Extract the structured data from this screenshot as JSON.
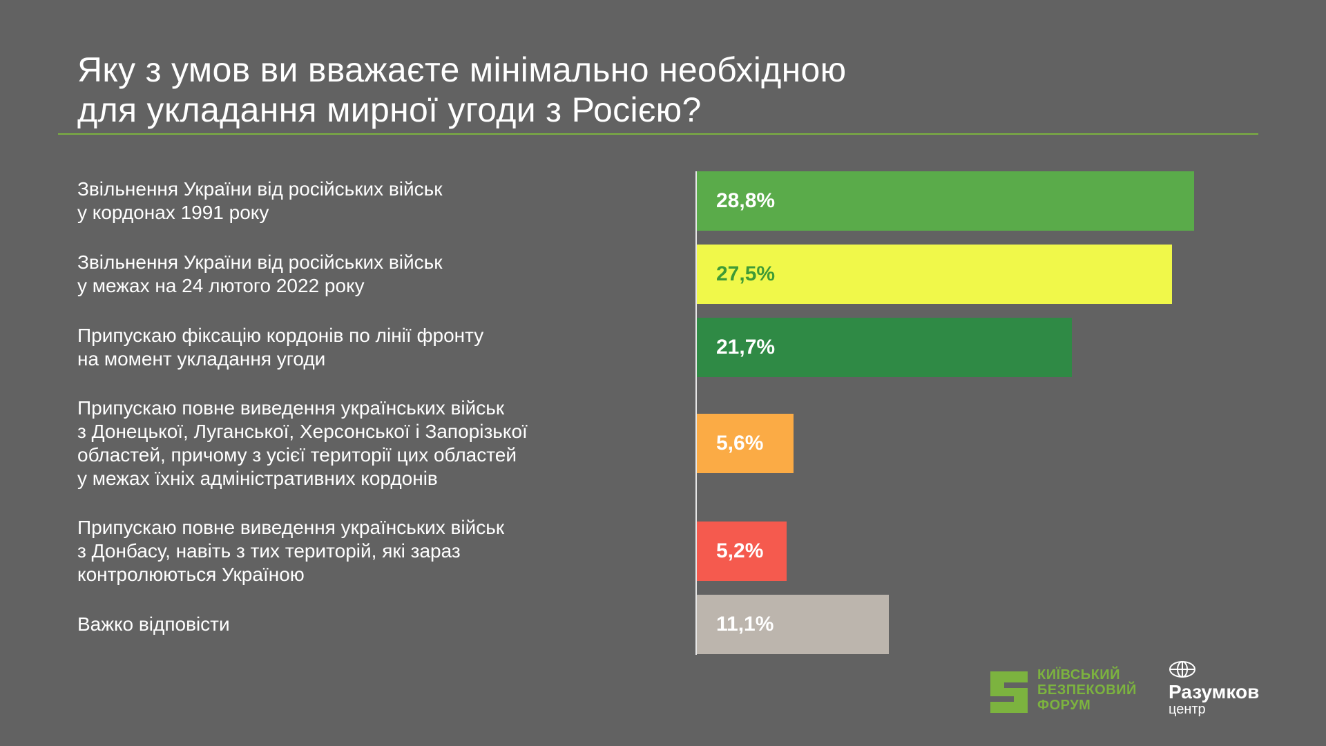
{
  "title": {
    "line1": "Яку з умов ви вважаєте мінімально необхідною",
    "line2": "для укладання мирної угоди з Росією?"
  },
  "chart_data": {
    "type": "bar",
    "orientation": "horizontal",
    "title": "Яку з умов ви вважаєте мінімально необхідною для укладання мирної угоди з Росією?",
    "categories": [
      [
        "Звільнення України від російських військ",
        "у кордонах 1991 року"
      ],
      [
        "Звільнення України від російських військ",
        "у межах на 24 лютого 2022 року"
      ],
      [
        "Припускаю фіксацію кордонів по лінії фронту",
        "на момент укладання угоди"
      ],
      [
        "Припускаю повне виведення українських військ",
        "з Донецької, Луганської, Херсонської і Запорізької",
        "областей, причому з усієї території цих областей",
        "у межах їхніх адміністративних кордонів"
      ],
      [
        "Припускаю повне виведення українських військ",
        "з Донбасу, навіть з тих територій, які зараз",
        "контролюються Україною"
      ],
      [
        "Важко відповісти"
      ]
    ],
    "values": [
      28.8,
      27.5,
      21.7,
      5.6,
      5.2,
      11.1
    ],
    "value_labels": [
      "28,8%",
      "27,5%",
      "21,7%",
      "5,6%",
      "5,2%",
      "11,1%"
    ],
    "colors": [
      "#5aab4a",
      "#f0f84a",
      "#2f8a45",
      "#fbab45",
      "#f55a4e",
      "#bcb5ad"
    ],
    "label_colors": [
      "#ffffff",
      "#3f9b36",
      "#ffffff",
      "#ffffff",
      "#ffffff",
      "#ffffff"
    ],
    "xlim": [
      0,
      28.8
    ],
    "grid": false
  },
  "logos": {
    "kbf": [
      "КИЇВСЬКИЙ",
      "БЕЗПЕКОВИЙ",
      "ФОРУМ"
    ],
    "razumkov_name": "Разумков",
    "razumkov_sub": "центр"
  }
}
